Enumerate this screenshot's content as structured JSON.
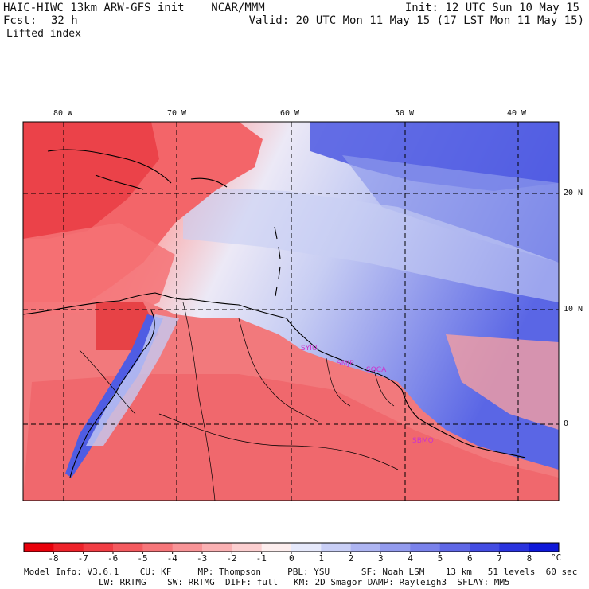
{
  "header": {
    "title_left": "HAIC-HIWC 13km ARW-GFS init    NCAR/MMM",
    "init": "Init: 12 UTC Sun 10 May 15",
    "fcst_label": "Fcst:",
    "fcst_value": "32 h",
    "valid": "Valid: 20 UTC Mon 11 May 15 (17 LST Mon 11 May 15)",
    "field": "Lifted index"
  },
  "map": {
    "longitude_labels": [
      "80 W",
      "70 W",
      "60 W",
      "50 W",
      "40 W"
    ],
    "latitude_labels": [
      "20 N",
      "10 N",
      "0"
    ],
    "stations": [
      "SYIU",
      "SMJP",
      "SOCA",
      "SBMQ"
    ],
    "colors": {
      "unstable_dark": "#e8333a",
      "unstable_mid": "#f47a7a",
      "unstable_light": "#fbc4c4",
      "neutral": "#f7f1f4",
      "stable_light": "#c9d0f4",
      "stable_mid": "#8f9be9",
      "stable_dark": "#3f4fdf",
      "station_label": "#cc33cc"
    }
  },
  "colorbar": {
    "labels": [
      "-8",
      "-7",
      "-6",
      "-5",
      "-4",
      "-3",
      "-2",
      "-1",
      "0",
      "1",
      "2",
      "3",
      "4",
      "5",
      "6",
      "7",
      "8"
    ],
    "unit": "°C",
    "colors": [
      "#e8000b",
      "#ee222a",
      "#f13d44",
      "#f45a5f",
      "#f6767a",
      "#f89497",
      "#fab1b3",
      "#fccfd0",
      "#fdeeee",
      "#e6e9fb",
      "#c9cff6",
      "#aeb5f2",
      "#939bee",
      "#7a82eb",
      "#5f67e6",
      "#434ce2",
      "#2a33de",
      "#0e18d9"
    ]
  },
  "model_info": {
    "line1": "Model Info: V3.6.1    CU: KF     MP: Thompson     PBL: YSU      SF: Noah LSM    13 km   51 levels  60 sec",
    "line2": "LW: RRTMG    SW: RRTMG  DIFF: full   KM: 2D Smagor DAMP: Rayleigh3  SFLAY: MM5"
  }
}
